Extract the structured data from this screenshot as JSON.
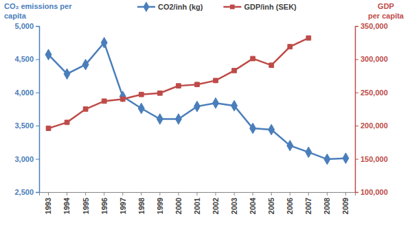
{
  "chart_data": {
    "type": "line",
    "y_label": "CO₂ emissions per capita",
    "y2_label": "GDP per capita",
    "categories": [
      "1993",
      "1994",
      "1995",
      "1996",
      "1997",
      "1998",
      "1999",
      "2000",
      "2001",
      "2002",
      "2003",
      "2004",
      "2005",
      "2006",
      "2007",
      "2008",
      "2009"
    ],
    "series": [
      {
        "name": "CO2/inh (kg)",
        "color": "#4a7ebb",
        "marker": "diamond",
        "values": [
          4570,
          4280,
          4420,
          4750,
          3940,
          3760,
          3600,
          3600,
          3790,
          3840,
          3800,
          3460,
          3440,
          3200,
          3100,
          2995,
          3010
        ]
      },
      {
        "name": "GDP/inh (SEK)",
        "color": "#be4b48",
        "marker": "square",
        "axis": "y2",
        "values": [
          196000,
          205000,
          225000,
          237000,
          240000,
          247000,
          249000,
          260000,
          262000,
          268000,
          283000,
          301000,
          291000,
          319000,
          332000,
          null,
          null
        ]
      }
    ],
    "ylim": [
      2500,
      5000
    ],
    "yticks": [
      {
        "value": 2500,
        "label": "2,500"
      },
      {
        "value": 3000,
        "label": "3,000"
      },
      {
        "value": 3500,
        "label": "3,500"
      },
      {
        "value": 4000,
        "label": "4,000"
      },
      {
        "value": 4500,
        "label": "4,500"
      },
      {
        "value": 5000,
        "label": "5,000"
      }
    ],
    "y2lim": [
      100000,
      350000
    ],
    "y2ticks": [
      {
        "value": 100000,
        "label": "100,000"
      },
      {
        "value": 150000,
        "label": "150,000"
      },
      {
        "value": 200000,
        "label": "200,000"
      },
      {
        "value": 250000,
        "label": "250,000"
      },
      {
        "value": 300000,
        "label": "300,000"
      },
      {
        "value": 350000,
        "label": "350,000"
      }
    ],
    "legend": "top",
    "grid": false
  }
}
